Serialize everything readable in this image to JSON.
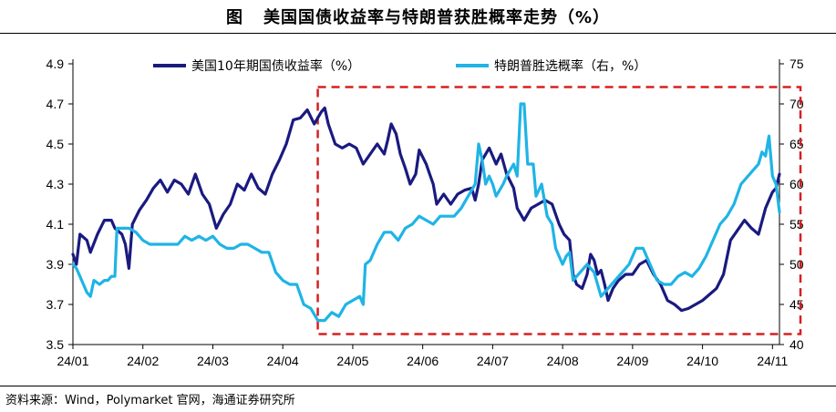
{
  "header": {
    "prefix": "图",
    "title": "美国国债收益率与特朗普获胜概率走势（%）"
  },
  "footer": {
    "source": "资料来源：Wind，Polymarket 官网，海通证券研究所"
  },
  "colors": {
    "treasury": "#1a1a80",
    "trump": "#1fb4e6",
    "highlight_box": "#d42020"
  },
  "chart_data": {
    "type": "line",
    "x_tick_labels": [
      "24/01",
      "24/02",
      "24/03",
      "24/04",
      "24/05",
      "24/06",
      "24/07",
      "24/08",
      "24/09",
      "24/10",
      "24/11"
    ],
    "y_left": {
      "ticks": [
        "3.5",
        "3.7",
        "3.9",
        "4.1",
        "4.3",
        "4.5",
        "4.7",
        "4.9"
      ],
      "range": [
        3.5,
        4.9
      ]
    },
    "y_right": {
      "ticks": [
        "40",
        "45",
        "50",
        "55",
        "60",
        "65",
        "70",
        "75"
      ],
      "range": [
        40,
        75
      ]
    },
    "x_range": [
      0,
      10.1
    ],
    "legend_position": "top",
    "highlight_region": {
      "x": [
        3.5,
        10.4
      ],
      "y_right": [
        41.3,
        72.1
      ]
    },
    "series": [
      {
        "name": "美国10年期国债收益率（%）",
        "axis": "left",
        "points": [
          [
            0,
            3.95
          ],
          [
            0.05,
            3.9
          ],
          [
            0.1,
            4.05
          ],
          [
            0.2,
            4.02
          ],
          [
            0.25,
            3.96
          ],
          [
            0.35,
            4.05
          ],
          [
            0.45,
            4.12
          ],
          [
            0.55,
            4.12
          ],
          [
            0.6,
            4.08
          ],
          [
            0.7,
            4.05
          ],
          [
            0.75,
            4.0
          ],
          [
            0.8,
            3.88
          ],
          [
            0.85,
            4.1
          ],
          [
            0.95,
            4.17
          ],
          [
            1.05,
            4.22
          ],
          [
            1.15,
            4.28
          ],
          [
            1.25,
            4.32
          ],
          [
            1.35,
            4.26
          ],
          [
            1.45,
            4.32
          ],
          [
            1.55,
            4.3
          ],
          [
            1.65,
            4.25
          ],
          [
            1.75,
            4.35
          ],
          [
            1.85,
            4.25
          ],
          [
            1.95,
            4.2
          ],
          [
            2.05,
            4.08
          ],
          [
            2.15,
            4.15
          ],
          [
            2.25,
            4.2
          ],
          [
            2.35,
            4.3
          ],
          [
            2.45,
            4.27
          ],
          [
            2.55,
            4.35
          ],
          [
            2.65,
            4.28
          ],
          [
            2.75,
            4.25
          ],
          [
            2.85,
            4.35
          ],
          [
            2.95,
            4.42
          ],
          [
            3.05,
            4.5
          ],
          [
            3.15,
            4.62
          ],
          [
            3.25,
            4.63
          ],
          [
            3.35,
            4.67
          ],
          [
            3.45,
            4.6
          ],
          [
            3.55,
            4.66
          ],
          [
            3.6,
            4.68
          ],
          [
            3.65,
            4.6
          ],
          [
            3.75,
            4.5
          ],
          [
            3.85,
            4.48
          ],
          [
            3.95,
            4.5
          ],
          [
            4.05,
            4.48
          ],
          [
            4.15,
            4.4
          ],
          [
            4.25,
            4.45
          ],
          [
            4.35,
            4.5
          ],
          [
            4.45,
            4.45
          ],
          [
            4.5,
            4.52
          ],
          [
            4.55,
            4.6
          ],
          [
            4.62,
            4.55
          ],
          [
            4.68,
            4.45
          ],
          [
            4.75,
            4.38
          ],
          [
            4.82,
            4.3
          ],
          [
            4.9,
            4.35
          ],
          [
            4.95,
            4.47
          ],
          [
            5.05,
            4.4
          ],
          [
            5.1,
            4.35
          ],
          [
            5.15,
            4.3
          ],
          [
            5.2,
            4.2
          ],
          [
            5.3,
            4.25
          ],
          [
            5.4,
            4.2
          ],
          [
            5.5,
            4.25
          ],
          [
            5.6,
            4.27
          ],
          [
            5.7,
            4.28
          ],
          [
            5.75,
            4.22
          ],
          [
            5.8,
            4.3
          ],
          [
            5.85,
            4.42
          ],
          [
            5.95,
            4.48
          ],
          [
            6.05,
            4.4
          ],
          [
            6.12,
            4.45
          ],
          [
            6.2,
            4.35
          ],
          [
            6.3,
            4.28
          ],
          [
            6.35,
            4.18
          ],
          [
            6.45,
            4.12
          ],
          [
            6.55,
            4.18
          ],
          [
            6.65,
            4.2
          ],
          [
            6.75,
            4.22
          ],
          [
            6.85,
            4.2
          ],
          [
            6.95,
            4.1
          ],
          [
            7.02,
            4.05
          ],
          [
            7.1,
            4.02
          ],
          [
            7.15,
            3.85
          ],
          [
            7.2,
            3.8
          ],
          [
            7.28,
            3.78
          ],
          [
            7.35,
            3.85
          ],
          [
            7.4,
            3.95
          ],
          [
            7.45,
            3.92
          ],
          [
            7.5,
            3.85
          ],
          [
            7.55,
            3.87
          ],
          [
            7.6,
            3.8
          ],
          [
            7.65,
            3.72
          ],
          [
            7.72,
            3.78
          ],
          [
            7.8,
            3.82
          ],
          [
            7.9,
            3.85
          ],
          [
            8.0,
            3.85
          ],
          [
            8.1,
            3.9
          ],
          [
            8.2,
            3.92
          ],
          [
            8.3,
            3.85
          ],
          [
            8.4,
            3.8
          ],
          [
            8.5,
            3.72
          ],
          [
            8.6,
            3.7
          ],
          [
            8.7,
            3.67
          ],
          [
            8.8,
            3.68
          ],
          [
            8.9,
            3.7
          ],
          [
            9.0,
            3.72
          ],
          [
            9.1,
            3.75
          ],
          [
            9.2,
            3.78
          ],
          [
            9.3,
            3.85
          ],
          [
            9.4,
            4.02
          ],
          [
            9.5,
            4.07
          ],
          [
            9.6,
            4.12
          ],
          [
            9.7,
            4.08
          ],
          [
            9.8,
            4.05
          ],
          [
            9.9,
            4.18
          ],
          [
            10.0,
            4.26
          ],
          [
            10.05,
            4.28
          ],
          [
            10.1,
            4.35
          ]
        ]
      },
      {
        "name": "特朗普胜选概率（右，%）",
        "axis": "right",
        "points": [
          [
            0,
            50
          ],
          [
            0.05,
            49.5
          ],
          [
            0.1,
            48.5
          ],
          [
            0.15,
            47.5
          ],
          [
            0.2,
            46.5
          ],
          [
            0.25,
            46
          ],
          [
            0.3,
            48
          ],
          [
            0.38,
            47.5
          ],
          [
            0.45,
            48
          ],
          [
            0.5,
            48
          ],
          [
            0.55,
            48.5
          ],
          [
            0.6,
            48.5
          ],
          [
            0.63,
            54.5
          ],
          [
            0.7,
            54.5
          ],
          [
            0.8,
            54.5
          ],
          [
            0.9,
            54
          ],
          [
            1.0,
            53
          ],
          [
            1.1,
            52.5
          ],
          [
            1.2,
            52.5
          ],
          [
            1.3,
            52.5
          ],
          [
            1.4,
            52.5
          ],
          [
            1.5,
            52.5
          ],
          [
            1.6,
            53.5
          ],
          [
            1.7,
            53
          ],
          [
            1.8,
            53.5
          ],
          [
            1.9,
            53
          ],
          [
            2.0,
            53.5
          ],
          [
            2.1,
            52.5
          ],
          [
            2.2,
            52
          ],
          [
            2.3,
            52
          ],
          [
            2.4,
            52.5
          ],
          [
            2.5,
            52.5
          ],
          [
            2.6,
            52
          ],
          [
            2.7,
            51.5
          ],
          [
            2.8,
            51.5
          ],
          [
            2.9,
            49
          ],
          [
            3.0,
            48
          ],
          [
            3.1,
            47.5
          ],
          [
            3.2,
            47.5
          ],
          [
            3.3,
            45
          ],
          [
            3.4,
            44.5
          ],
          [
            3.5,
            43
          ],
          [
            3.6,
            43
          ],
          [
            3.7,
            44
          ],
          [
            3.8,
            43.5
          ],
          [
            3.9,
            45
          ],
          [
            4.0,
            45.5
          ],
          [
            4.1,
            46
          ],
          [
            4.15,
            45
          ],
          [
            4.18,
            50
          ],
          [
            4.25,
            50.5
          ],
          [
            4.35,
            52.5
          ],
          [
            4.45,
            54
          ],
          [
            4.55,
            54
          ],
          [
            4.65,
            53
          ],
          [
            4.75,
            54.5
          ],
          [
            4.85,
            55
          ],
          [
            4.95,
            56
          ],
          [
            5.05,
            55.5
          ],
          [
            5.15,
            55
          ],
          [
            5.25,
            56
          ],
          [
            5.35,
            56
          ],
          [
            5.45,
            56
          ],
          [
            5.55,
            57
          ],
          [
            5.65,
            58.5
          ],
          [
            5.75,
            60
          ],
          [
            5.8,
            65
          ],
          [
            5.85,
            63
          ],
          [
            5.9,
            60
          ],
          [
            5.95,
            61
          ],
          [
            6.0,
            60
          ],
          [
            6.05,
            58.5
          ],
          [
            6.15,
            60
          ],
          [
            6.2,
            61
          ],
          [
            6.3,
            62.5
          ],
          [
            6.35,
            61
          ],
          [
            6.4,
            70
          ],
          [
            6.45,
            70
          ],
          [
            6.5,
            62.5
          ],
          [
            6.58,
            62.5
          ],
          [
            6.62,
            58.5
          ],
          [
            6.7,
            60
          ],
          [
            6.78,
            56
          ],
          [
            6.85,
            55
          ],
          [
            6.9,
            52
          ],
          [
            6.95,
            51
          ],
          [
            7.0,
            50
          ],
          [
            7.05,
            51
          ],
          [
            7.1,
            51.5
          ],
          [
            7.15,
            48
          ],
          [
            7.25,
            49
          ],
          [
            7.35,
            50
          ],
          [
            7.45,
            49
          ],
          [
            7.55,
            46
          ],
          [
            7.65,
            47
          ],
          [
            7.75,
            48
          ],
          [
            7.85,
            49
          ],
          [
            7.95,
            50
          ],
          [
            8.05,
            52
          ],
          [
            8.15,
            52
          ],
          [
            8.25,
            50
          ],
          [
            8.35,
            48
          ],
          [
            8.45,
            47.5
          ],
          [
            8.55,
            47.5
          ],
          [
            8.65,
            48.5
          ],
          [
            8.75,
            49
          ],
          [
            8.85,
            48.5
          ],
          [
            8.95,
            49.5
          ],
          [
            9.05,
            51
          ],
          [
            9.15,
            53
          ],
          [
            9.25,
            55
          ],
          [
            9.35,
            56
          ],
          [
            9.45,
            57.5
          ],
          [
            9.55,
            60
          ],
          [
            9.65,
            61
          ],
          [
            9.75,
            62
          ],
          [
            9.8,
            62.5
          ],
          [
            9.85,
            64
          ],
          [
            9.9,
            63.5
          ],
          [
            9.95,
            66
          ],
          [
            10.0,
            61
          ],
          [
            10.05,
            60
          ],
          [
            10.1,
            56.5
          ]
        ]
      }
    ]
  }
}
